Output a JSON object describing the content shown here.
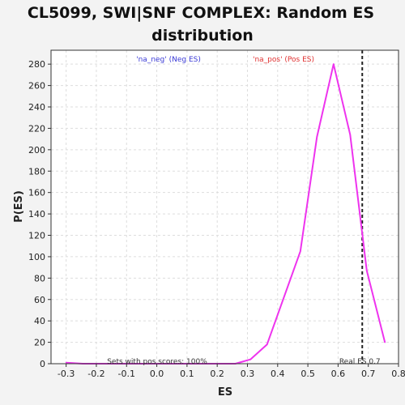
{
  "chart_data": {
    "type": "line",
    "title_line1": "CL5099, SWI|SNF COMPLEX: Random ES",
    "title_line2": "distribution",
    "xlabel": "ES",
    "ylabel": "P(ES)",
    "xlim": [
      -0.35,
      0.8
    ],
    "ylim": [
      0,
      293
    ],
    "x_ticks": [
      -0.3,
      -0.2,
      -0.1,
      0.0,
      0.1,
      0.2,
      0.3,
      0.4,
      0.5,
      0.6,
      0.7,
      0.8
    ],
    "x_tick_labels": [
      "-0.3",
      "-0.2",
      "-0.1",
      "0.0",
      "0.1",
      "0.2",
      "0.3",
      "0.4",
      "0.5",
      "0.6",
      "0.7",
      "0.8"
    ],
    "y_ticks": [
      0,
      20,
      40,
      60,
      80,
      100,
      120,
      140,
      160,
      180,
      200,
      220,
      240,
      260,
      280
    ],
    "y_tick_labels": [
      "0",
      "20",
      "40",
      "60",
      "80",
      "100",
      "120",
      "140",
      "160",
      "180",
      "200",
      "220",
      "240",
      "260",
      "280"
    ],
    "grid": true,
    "legend": {
      "neg_label": "'na_neg' (Neg ES)",
      "pos_label": "'na_pos' (Pos ES)",
      "placement": "top"
    },
    "series": [
      {
        "name": "'na_pos' (Pos ES)",
        "color": "#ee33ee",
        "x": [
          -0.3,
          -0.245,
          -0.19,
          -0.135,
          -0.08,
          -0.025,
          0.03,
          0.085,
          0.14,
          0.2,
          0.26,
          0.31,
          0.365,
          0.475,
          0.53,
          0.585,
          0.64,
          0.695,
          0.755
        ],
        "y": [
          1,
          0,
          0,
          0,
          0,
          0,
          0,
          0,
          0,
          0,
          0,
          4,
          18,
          105,
          212,
          280,
          214,
          87,
          20
        ]
      }
    ],
    "real_es": {
      "value": 0.68,
      "label": "Real ES 0.7",
      "color": "#222222"
    },
    "annotation_bottom": "Sets with pos scores: 100%"
  }
}
